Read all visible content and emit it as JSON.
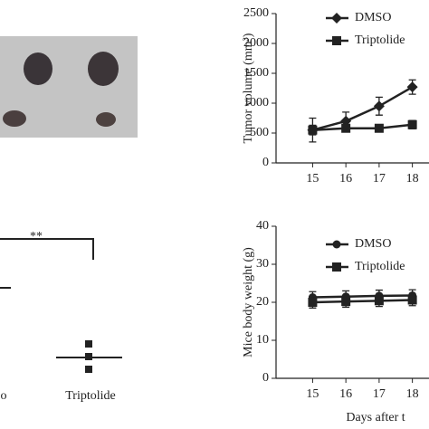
{
  "chart_data": [
    {
      "type": "line",
      "ylabel": "Tumor volume (mm³)",
      "x": [
        15,
        16,
        17,
        18
      ],
      "xlim": [
        13.9,
        18.5
      ],
      "xticks": [
        15,
        16,
        17,
        18
      ],
      "ylim": [
        0,
        2500
      ],
      "yticks": [
        0,
        500,
        1000,
        1500,
        2000,
        2500
      ],
      "series": [
        {
          "name": "DMSO",
          "color": "#222222",
          "marker": "diamond",
          "values": [
            550,
            700,
            950,
            1270
          ],
          "errors": [
            200,
            150,
            150,
            120
          ]
        },
        {
          "name": "Triptolide",
          "color": "#222222",
          "marker": "square",
          "values": [
            550,
            580,
            580,
            640
          ],
          "errors": [
            80,
            60,
            50,
            70
          ]
        }
      ]
    },
    {
      "type": "dot",
      "categories": [
        "o",
        "Triptolide"
      ],
      "annotation": "**"
    },
    {
      "type": "line",
      "ylabel": "Mice body weight (g)",
      "xlabel": "Days after t",
      "x": [
        15,
        16,
        17,
        18
      ],
      "xlim": [
        13.9,
        18.5
      ],
      "xticks": [
        15,
        16,
        17,
        18
      ],
      "ylim": [
        0,
        40
      ],
      "yticks": [
        0,
        10,
        20,
        30,
        40
      ],
      "series": [
        {
          "name": "DMSO",
          "color": "#222222",
          "marker": "circle",
          "values": [
            21.3,
            21.5,
            21.7,
            21.8
          ],
          "errors": [
            1.5,
            1.5,
            1.5,
            1.5
          ]
        },
        {
          "name": "Triptolide",
          "color": "#222222",
          "marker": "square",
          "values": [
            20,
            20.2,
            20.4,
            20.6
          ],
          "errors": [
            1.5,
            1.5,
            1.5,
            1.5
          ]
        }
      ]
    }
  ]
}
